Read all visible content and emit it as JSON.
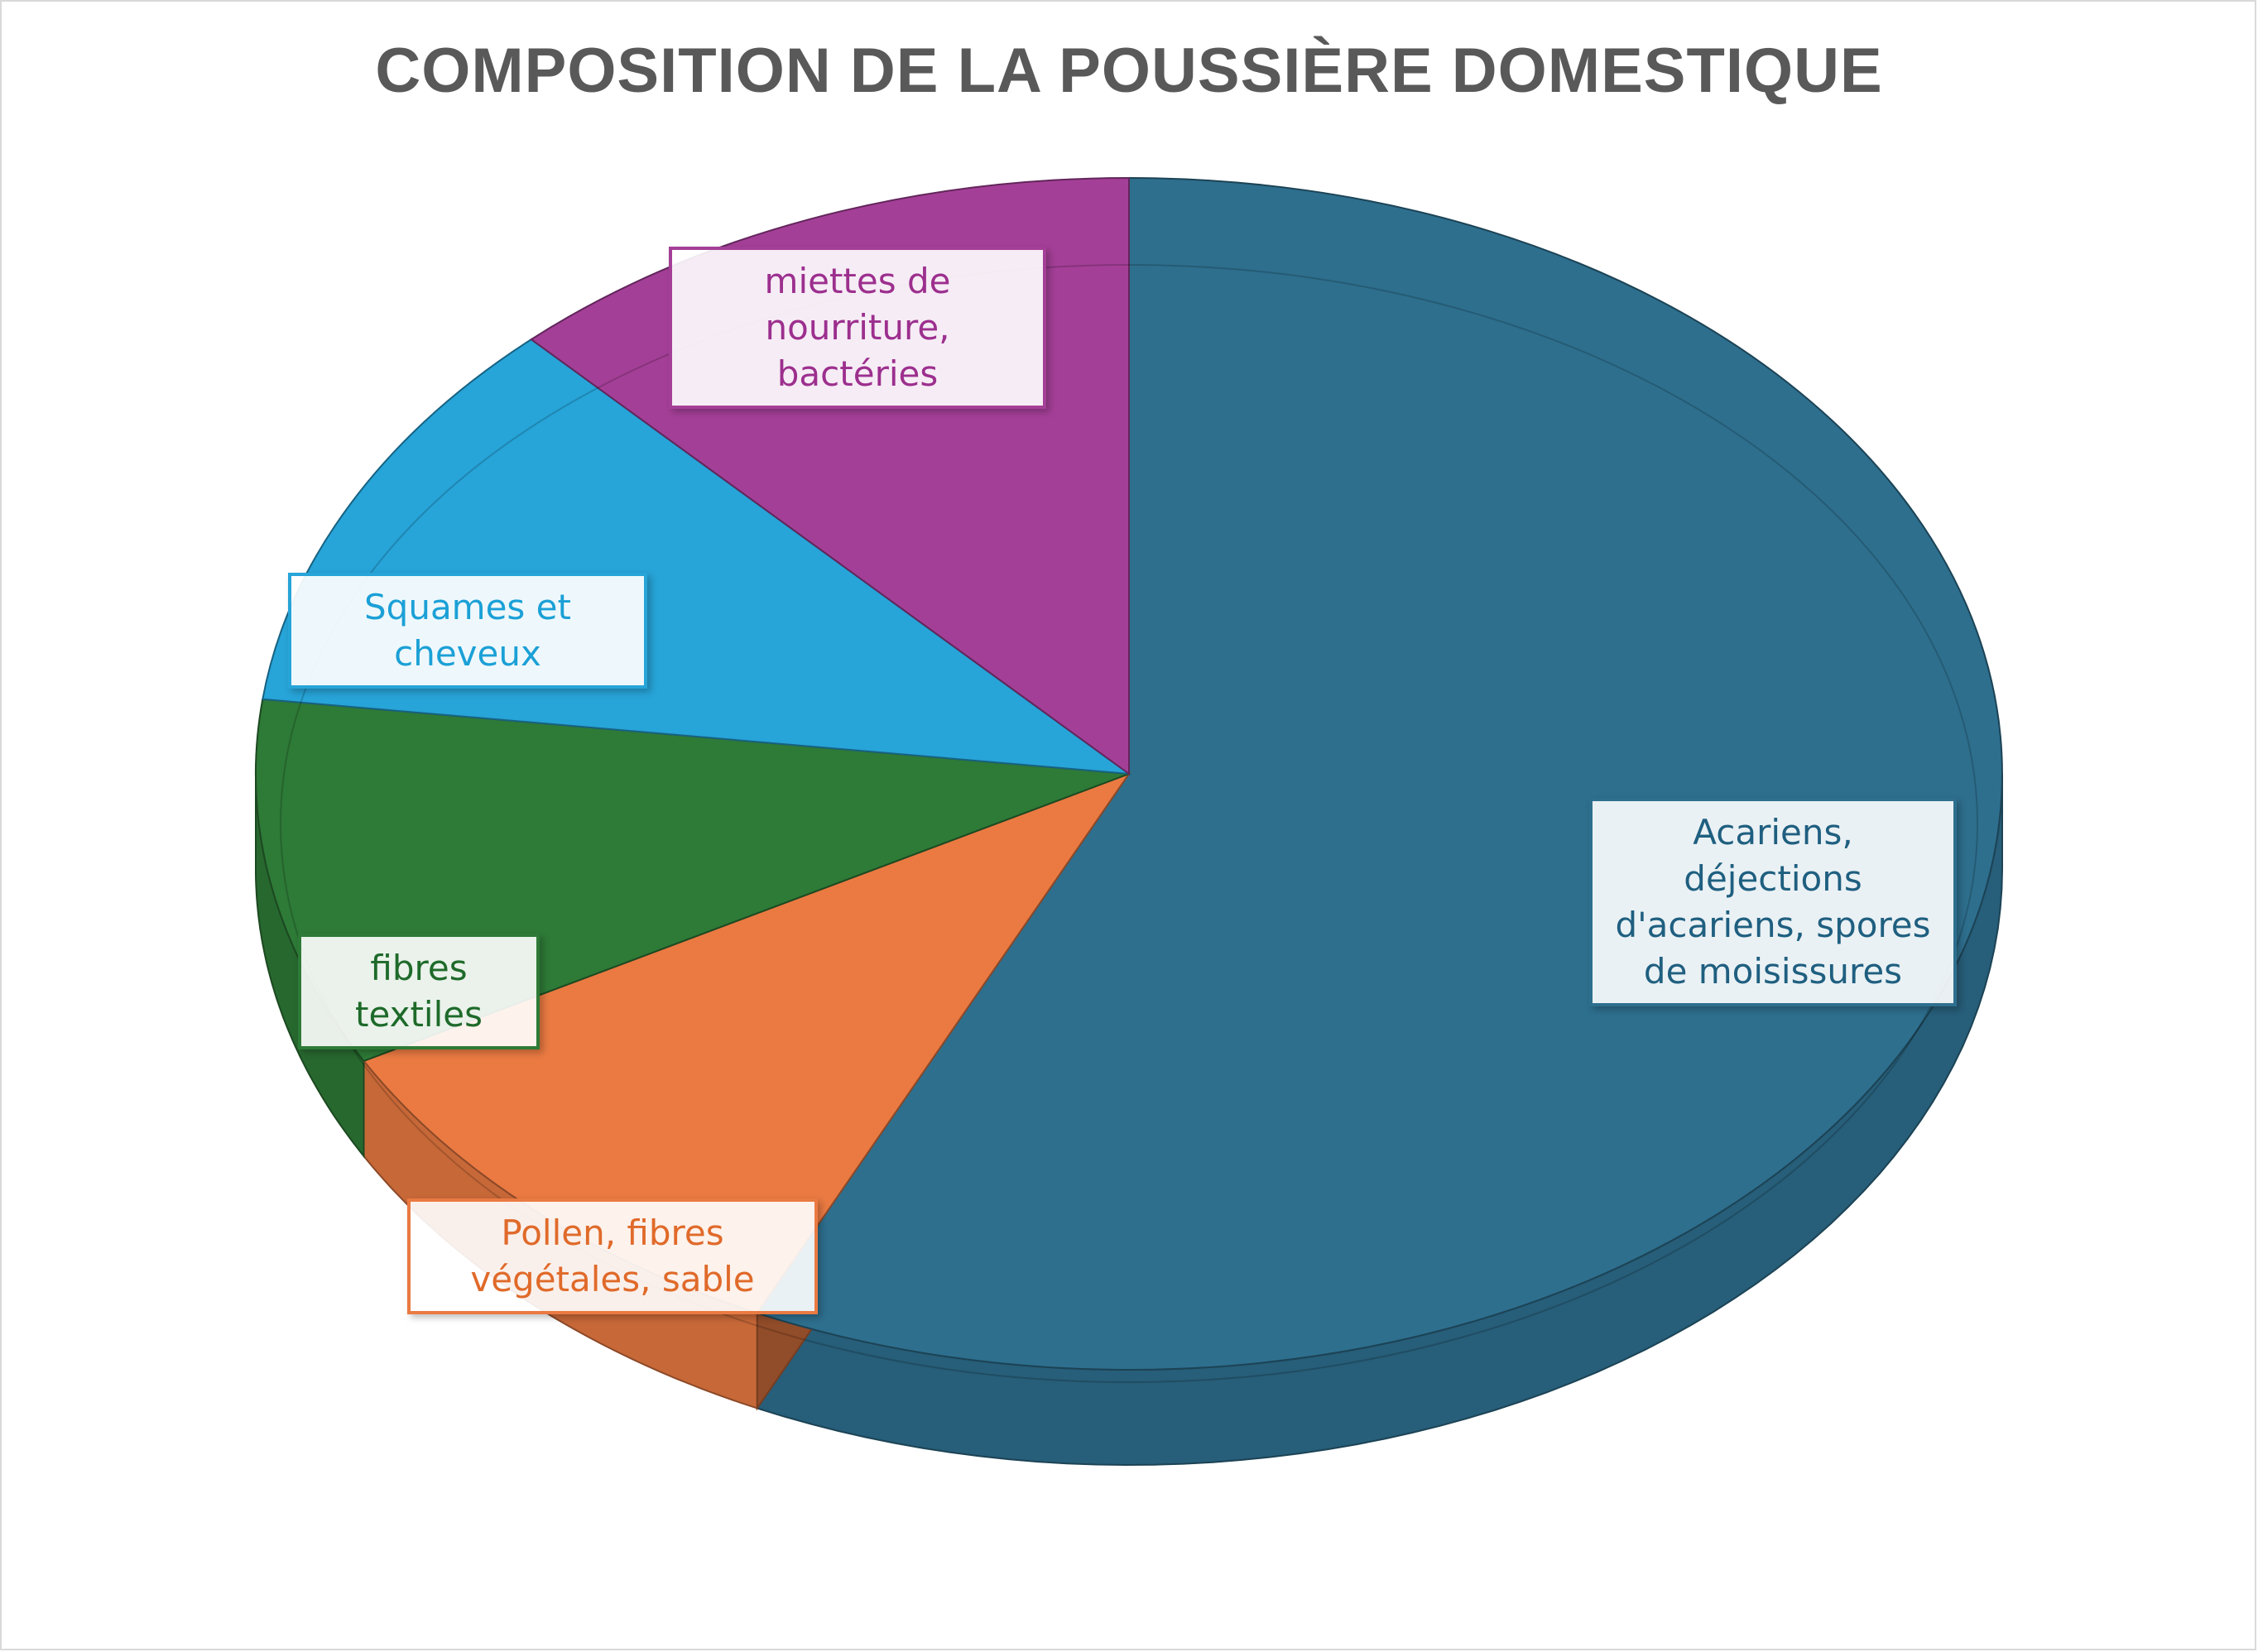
{
  "chart_data": {
    "type": "pie",
    "title": "COMPOSITION DE LA POUSSIÈRE DOMESTIQUE",
    "data_labels_shown": "category names",
    "legend": "none",
    "slices": [
      {
        "label": "Acariens, déjections d'acariens, spores de moisissures",
        "value": 57,
        "color": "#2e6f8e"
      },
      {
        "label": "Pollen, fibres végétales, sable",
        "value": 10,
        "color": "#ea7a42"
      },
      {
        "label": "fibres textiles",
        "value": 10,
        "color": "#2e7a37"
      },
      {
        "label": "Squames et cheveux",
        "value": 11,
        "color": "#27a4d8"
      },
      {
        "label": "miettes de nourriture, bactéries",
        "value": 12,
        "color": "#a43f97"
      }
    ]
  }
}
